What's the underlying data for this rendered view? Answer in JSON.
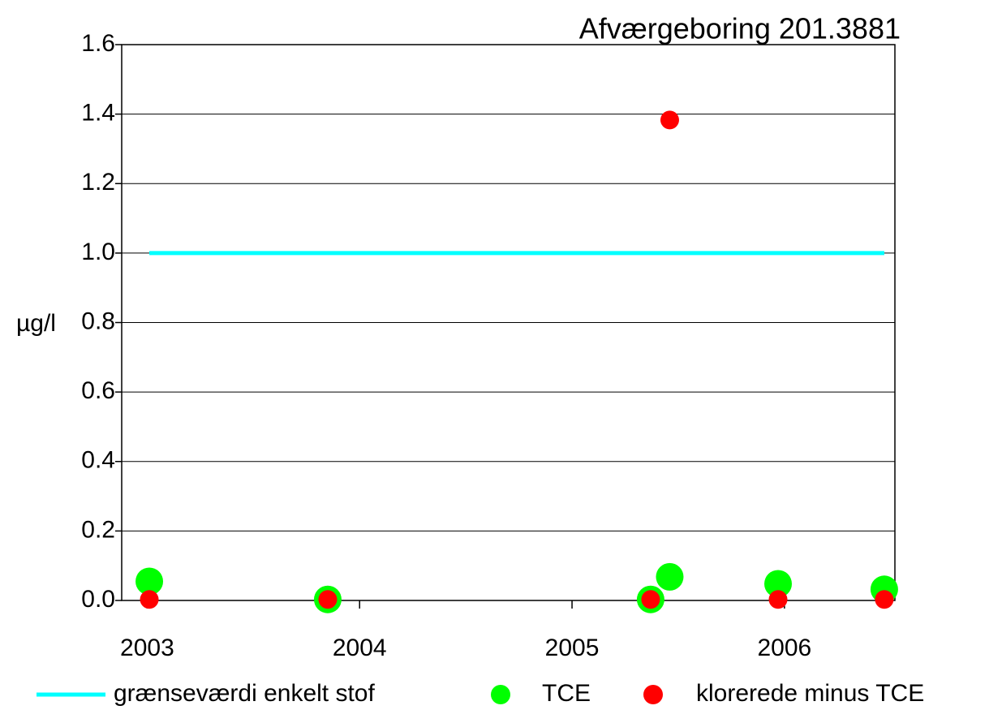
{
  "chart_data": {
    "type": "scatter",
    "title": "Afværgeboring  201.3881",
    "y_label": "µg/l",
    "xlim": [
      2002.88,
      2006.52
    ],
    "xticks": [
      2003,
      2004,
      2005,
      2006
    ],
    "ylim": [
      0,
      1.6
    ],
    "yticks": [
      {
        "value": 0,
        "label": "0.0"
      },
      0.2,
      0.4,
      0.6,
      0.8,
      {
        "value": 1,
        "label": "1.0"
      },
      1.2,
      1.4,
      1.6
    ],
    "grid": true,
    "legend": "bottom",
    "series": [
      {
        "name": "grænseværdi enkelt stof",
        "color": "#00ffff",
        "marker": "line",
        "x": [
          2003.01,
          2006.47
        ],
        "values": [
          1,
          1
        ]
      },
      {
        "name": "TCE",
        "color": "#00ff00",
        "marker": "large-dot",
        "x": [
          2003.01,
          2003.85,
          2005.37,
          2005.46,
          2005.97,
          2006.47
        ],
        "values": [
          0.055,
          0.003,
          0.003,
          0.068,
          0.048,
          0.032
        ]
      },
      {
        "name": "klorerede minus TCE",
        "color": "#ff0000",
        "marker": "dot",
        "x": [
          2003.01,
          2003.85,
          2005.37,
          2005.46,
          2005.97,
          2006.47
        ],
        "values": [
          0.003,
          0.003,
          0.003,
          1.383,
          0.003,
          0.003
        ]
      }
    ]
  }
}
